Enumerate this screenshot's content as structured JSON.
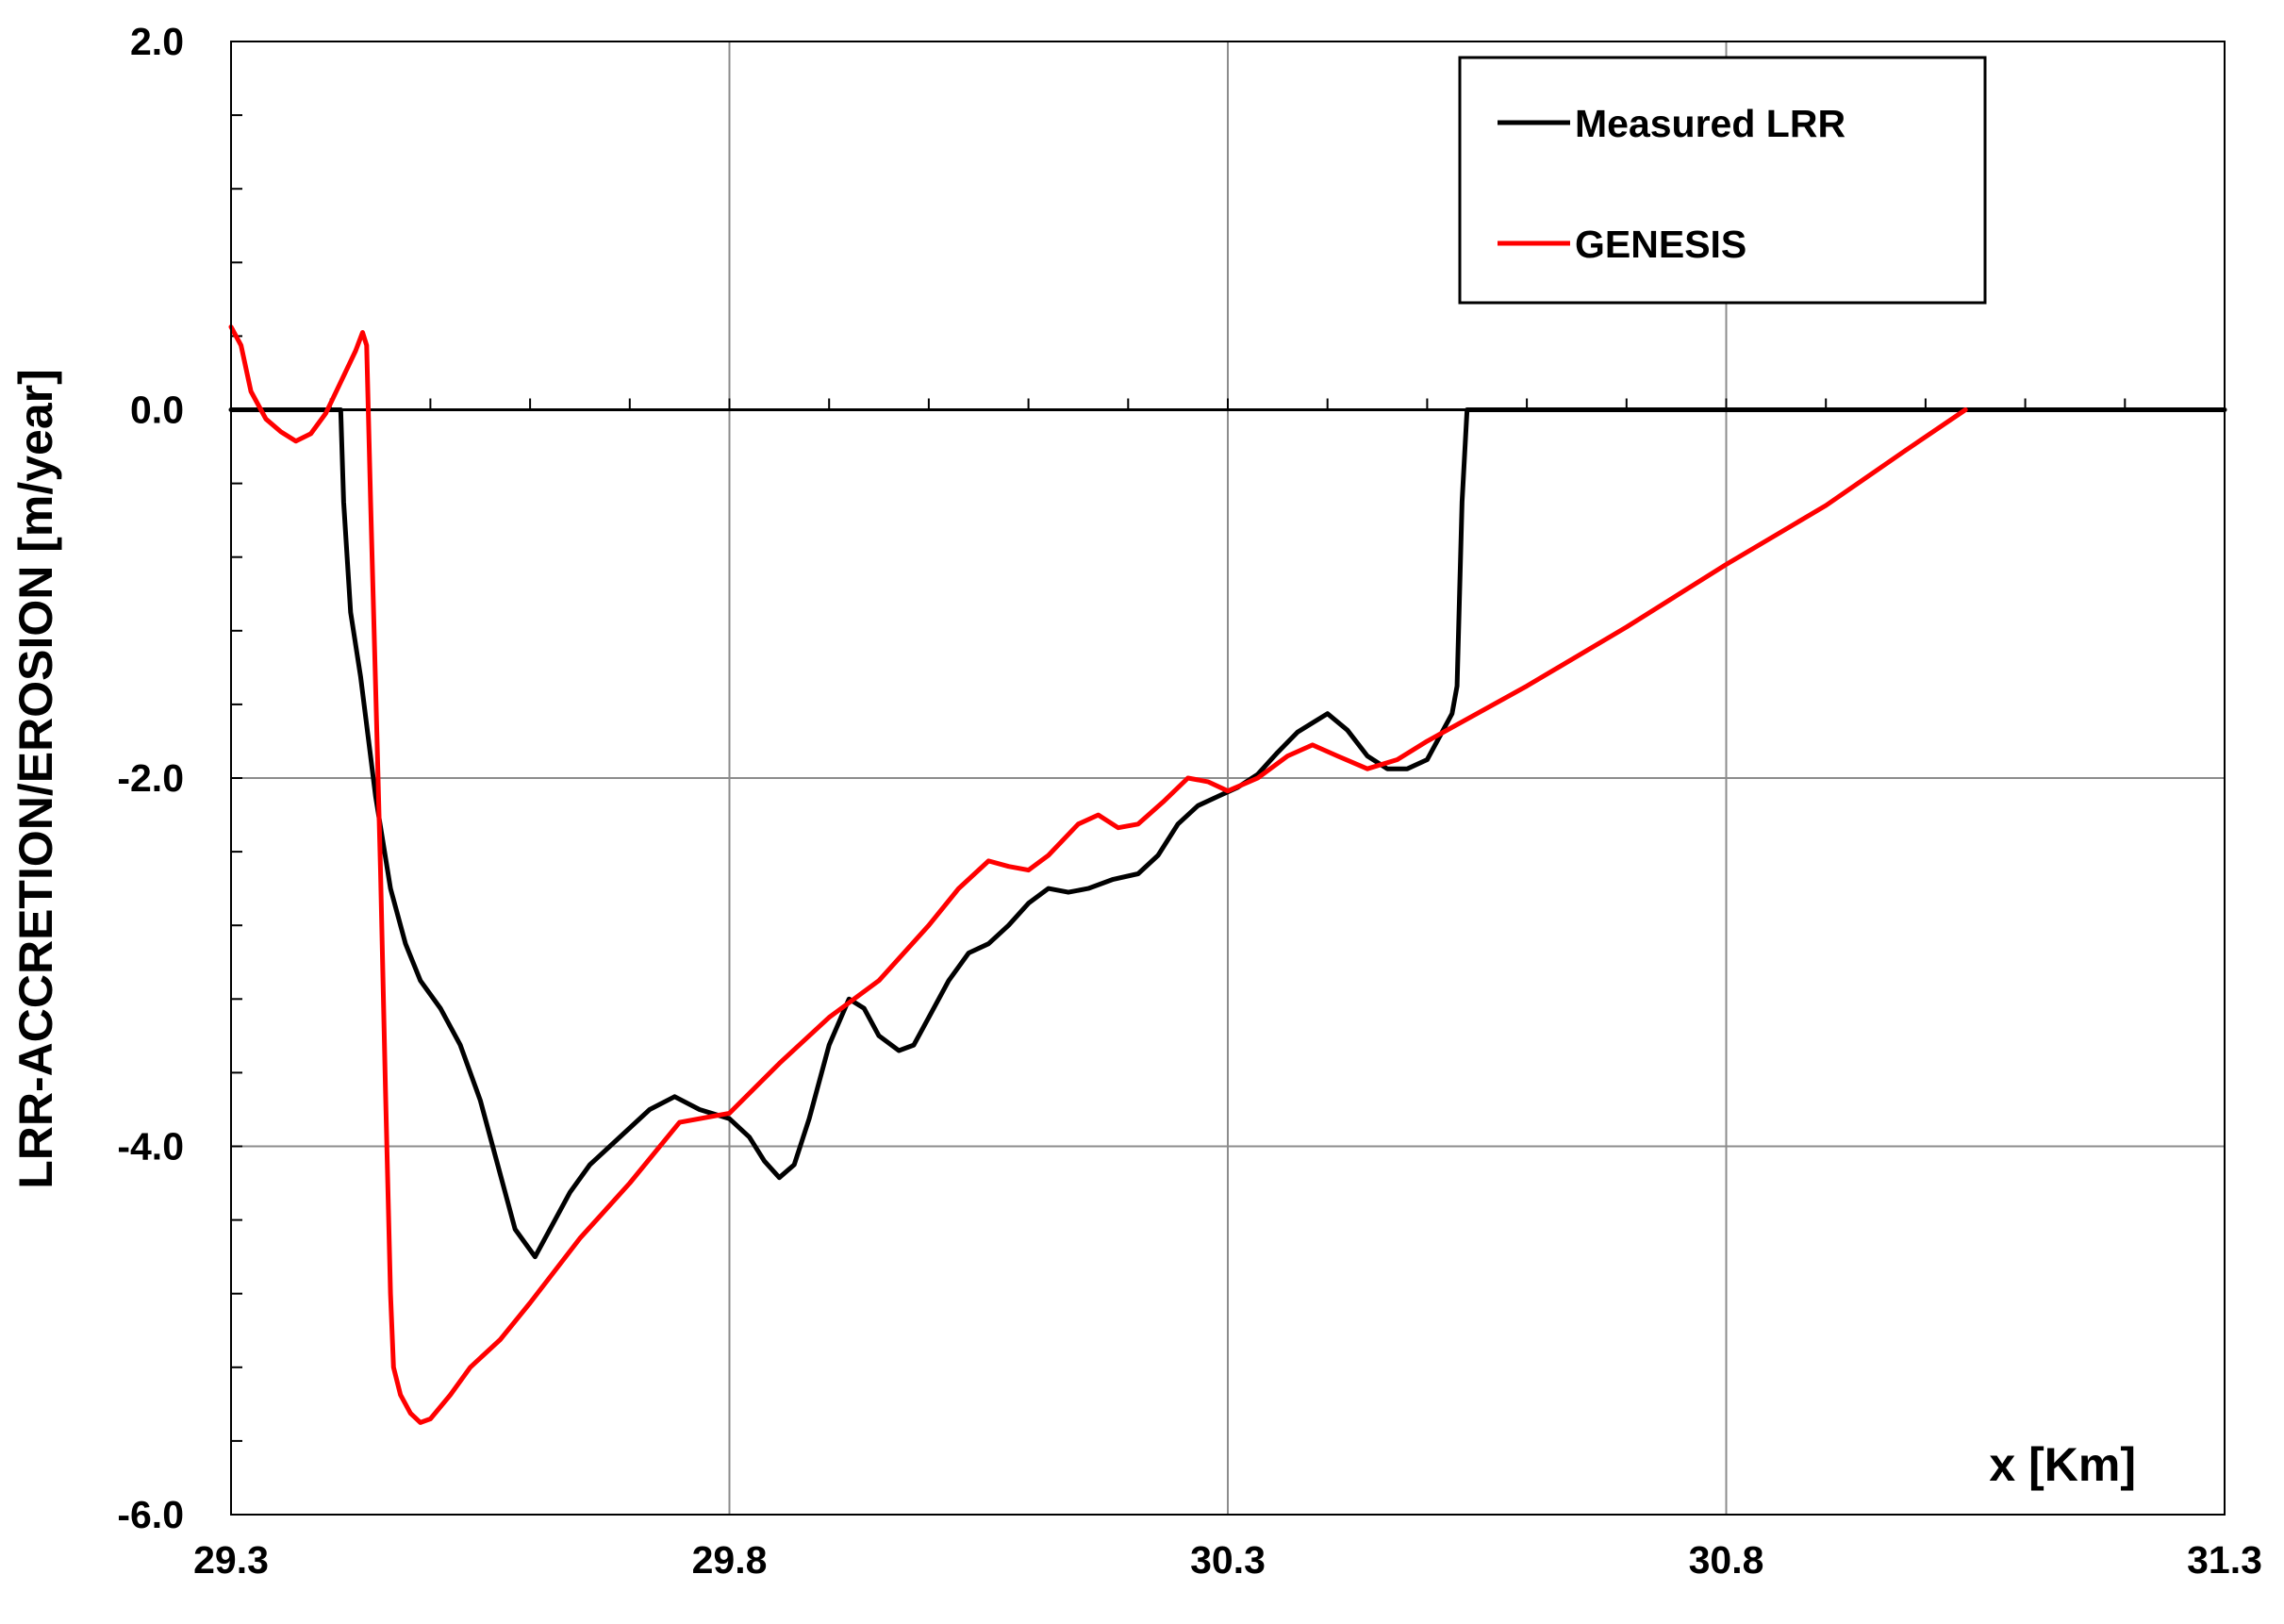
{
  "chart_data": {
    "type": "line",
    "title": "",
    "xlabel": "x [Km]",
    "ylabel": "LRR-ACCRETION/EROSION [m/year]",
    "xlim": [
      29.3,
      31.3
    ],
    "ylim": [
      -6.0,
      2.0
    ],
    "x_ticks": [
      "29.3",
      "29.8",
      "30.3",
      "30.8",
      "31.3"
    ],
    "y_ticks": [
      "2.0",
      "0.0",
      "-2.0",
      "-4.0",
      "-6.0"
    ],
    "grid": true,
    "legend_position": "top-right",
    "series": [
      {
        "name": "Measured LRR",
        "color": "#000000",
        "points": [
          [
            29.3,
            0.0
          ],
          [
            29.41,
            0.0
          ],
          [
            29.413,
            -0.5
          ],
          [
            29.42,
            -1.1
          ],
          [
            29.43,
            -1.45
          ],
          [
            29.445,
            -2.1
          ],
          [
            29.46,
            -2.6
          ],
          [
            29.475,
            -2.9
          ],
          [
            29.49,
            -3.1
          ],
          [
            29.51,
            -3.25
          ],
          [
            29.53,
            -3.45
          ],
          [
            29.55,
            -3.75
          ],
          [
            29.57,
            -4.15
          ],
          [
            29.585,
            -4.45
          ],
          [
            29.605,
            -4.6
          ],
          [
            29.62,
            -4.45
          ],
          [
            29.64,
            -4.25
          ],
          [
            29.66,
            -4.1
          ],
          [
            29.68,
            -4.0
          ],
          [
            29.7,
            -3.9
          ],
          [
            29.72,
            -3.8
          ],
          [
            29.745,
            -3.73
          ],
          [
            29.77,
            -3.8
          ],
          [
            29.8,
            -3.85
          ],
          [
            29.82,
            -3.95
          ],
          [
            29.835,
            -4.08
          ],
          [
            29.85,
            -4.17
          ],
          [
            29.865,
            -4.1
          ],
          [
            29.88,
            -3.85
          ],
          [
            29.9,
            -3.45
          ],
          [
            29.92,
            -3.2
          ],
          [
            29.935,
            -3.25
          ],
          [
            29.95,
            -3.4
          ],
          [
            29.97,
            -3.48
          ],
          [
            29.985,
            -3.45
          ],
          [
            30.0,
            -3.3
          ],
          [
            30.02,
            -3.1
          ],
          [
            30.04,
            -2.95
          ],
          [
            30.06,
            -2.9
          ],
          [
            30.08,
            -2.8
          ],
          [
            30.1,
            -2.68
          ],
          [
            30.12,
            -2.6
          ],
          [
            30.14,
            -2.62
          ],
          [
            30.16,
            -2.6
          ],
          [
            30.185,
            -2.55
          ],
          [
            30.21,
            -2.52
          ],
          [
            30.23,
            -2.42
          ],
          [
            30.25,
            -2.25
          ],
          [
            30.27,
            -2.15
          ],
          [
            30.29,
            -2.1
          ],
          [
            30.31,
            -2.05
          ],
          [
            30.33,
            -1.98
          ],
          [
            30.35,
            -1.86
          ],
          [
            30.37,
            -1.75
          ],
          [
            30.4,
            -1.65
          ],
          [
            30.42,
            -1.74
          ],
          [
            30.44,
            -1.88
          ],
          [
            30.46,
            -1.95
          ],
          [
            30.48,
            -1.95
          ],
          [
            30.5,
            -1.9
          ],
          [
            30.51,
            -1.8
          ],
          [
            30.525,
            -1.65
          ],
          [
            30.53,
            -1.5
          ],
          [
            30.535,
            -0.5
          ],
          [
            30.54,
            0.0
          ],
          [
            31.3,
            0.0
          ]
        ]
      },
      {
        "name": "GENESIS",
        "color": "#ff0000",
        "points": [
          [
            29.3,
            0.45
          ],
          [
            29.31,
            0.35
          ],
          [
            29.32,
            0.1
          ],
          [
            29.335,
            -0.05
          ],
          [
            29.35,
            -0.12
          ],
          [
            29.365,
            -0.17
          ],
          [
            29.38,
            -0.13
          ],
          [
            29.395,
            -0.02
          ],
          [
            29.41,
            0.15
          ],
          [
            29.425,
            0.32
          ],
          [
            29.432,
            0.42
          ],
          [
            29.436,
            0.35
          ],
          [
            29.44,
            -0.5
          ],
          [
            29.445,
            -1.5
          ],
          [
            29.45,
            -2.5
          ],
          [
            29.455,
            -3.7
          ],
          [
            29.46,
            -4.8
          ],
          [
            29.463,
            -5.2
          ],
          [
            29.47,
            -5.35
          ],
          [
            29.48,
            -5.45
          ],
          [
            29.49,
            -5.5
          ],
          [
            29.5,
            -5.48
          ],
          [
            29.52,
            -5.35
          ],
          [
            29.54,
            -5.2
          ],
          [
            29.57,
            -5.05
          ],
          [
            29.6,
            -4.85
          ],
          [
            29.65,
            -4.5
          ],
          [
            29.7,
            -4.2
          ],
          [
            29.75,
            -3.87
          ],
          [
            29.8,
            -3.82
          ],
          [
            29.85,
            -3.55
          ],
          [
            29.9,
            -3.3
          ],
          [
            29.95,
            -3.1
          ],
          [
            30.0,
            -2.8
          ],
          [
            30.03,
            -2.6
          ],
          [
            30.06,
            -2.45
          ],
          [
            30.08,
            -2.48
          ],
          [
            30.1,
            -2.5
          ],
          [
            30.12,
            -2.42
          ],
          [
            30.15,
            -2.25
          ],
          [
            30.17,
            -2.2
          ],
          [
            30.19,
            -2.27
          ],
          [
            30.21,
            -2.25
          ],
          [
            30.235,
            -2.13
          ],
          [
            30.26,
            -2.0
          ],
          [
            30.28,
            -2.02
          ],
          [
            30.3,
            -2.07
          ],
          [
            30.33,
            -2.0
          ],
          [
            30.36,
            -1.88
          ],
          [
            30.385,
            -1.82
          ],
          [
            30.41,
            -1.88
          ],
          [
            30.44,
            -1.95
          ],
          [
            30.47,
            -1.9
          ],
          [
            30.5,
            -1.8
          ],
          [
            30.6,
            -1.5
          ],
          [
            30.7,
            -1.18
          ],
          [
            30.8,
            -0.84
          ],
          [
            30.9,
            -0.52
          ],
          [
            30.98,
            -0.22
          ],
          [
            31.04,
            0.0
          ]
        ]
      }
    ]
  }
}
